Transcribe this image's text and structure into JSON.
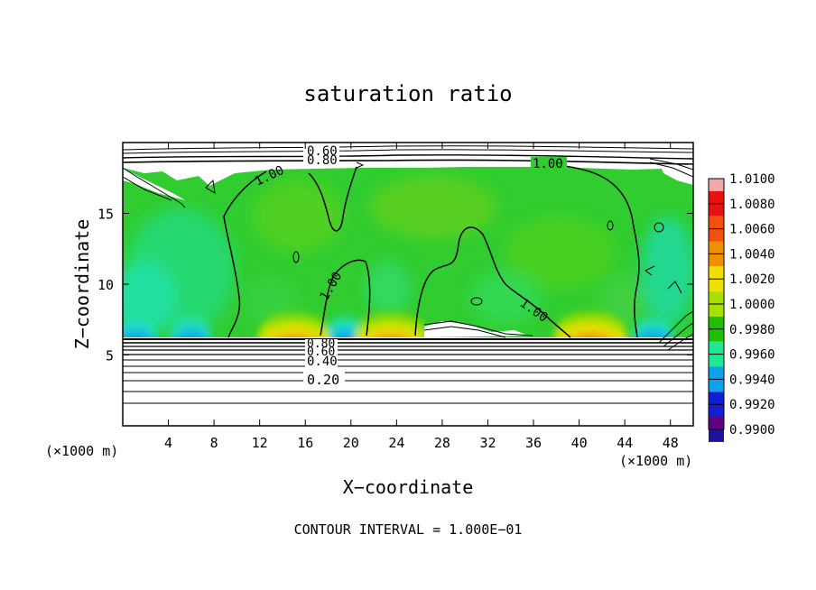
{
  "chart_data": {
    "type": "heatmap",
    "title": "saturation ratio",
    "xlabel": "X−coordinate",
    "ylabel": "Z−coordinate",
    "x_unit_left": "(×1000 m)",
    "x_unit_right": "(×1000 m)",
    "footer": "CONTOUR INTERVAL = 1.000E−01",
    "xlim": [
      0,
      50
    ],
    "ylim": [
      0,
      20
    ],
    "x_ticks": [
      4,
      8,
      12,
      16,
      20,
      24,
      28,
      32,
      36,
      40,
      44,
      48
    ],
    "y_ticks": [
      5,
      10,
      15
    ],
    "colorbar": {
      "labels": [
        "1.0100",
        "1.0080",
        "1.0060",
        "1.0040",
        "1.0020",
        "1.0000",
        "0.9980",
        "0.9960",
        "0.9940",
        "0.9920",
        "0.9900"
      ],
      "colors": [
        "#f3a8a8",
        "#e81010",
        "#f05010",
        "#f09000",
        "#f0e000",
        "#a8e000",
        "#20c000",
        "#20e890",
        "#10a0f0",
        "#1020d0",
        "#2010a0",
        "#600080"
      ]
    },
    "contour_labels": {
      "top": [
        "0.60",
        "0.80",
        "1.00"
      ],
      "middle": [
        "1.00",
        "1.00",
        "1.00"
      ],
      "bottom": [
        "0.80",
        "0.60",
        "0.40",
        "0.20"
      ]
    },
    "hot_spots": [
      {
        "x": 15,
        "z": 6.6
      },
      {
        "x": 23.5,
        "z": 6.6
      },
      {
        "x": 41,
        "z": 6.7
      }
    ],
    "cold_spots": [
      {
        "x": 1.2,
        "z": 6.6
      },
      {
        "x": 6,
        "z": 6.6
      },
      {
        "x": 19.5,
        "z": 6.6
      },
      {
        "x": 46.5,
        "z": 6.6
      }
    ]
  }
}
